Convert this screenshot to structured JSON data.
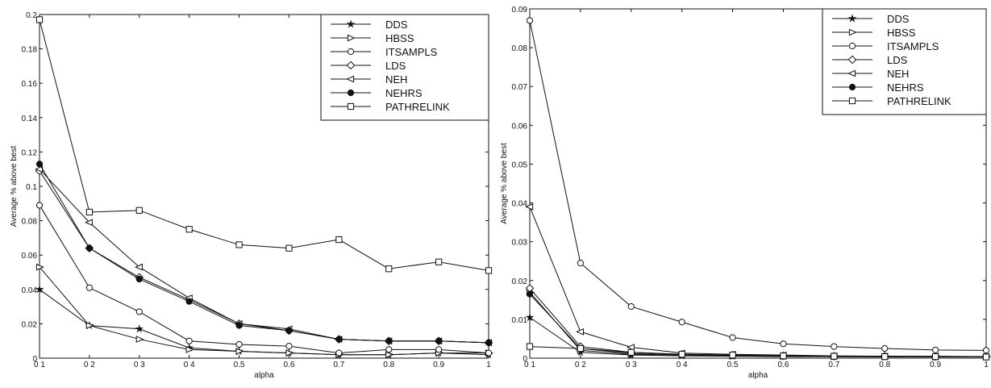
{
  "chart_data": [
    {
      "type": "line",
      "xlabel": "alpha",
      "ylabel": "Average % above best",
      "xlim": [
        0.1,
        1.0
      ],
      "ylim": [
        0,
        0.2
      ],
      "x": [
        0.1,
        0.2,
        0.3,
        0.4,
        0.5,
        0.6,
        0.7,
        0.8,
        0.9,
        1.0
      ],
      "x_tick_labels": [
        "0 1",
        "0 2",
        "0 3",
        "0 4",
        "0.5",
        "0.6",
        "0.7",
        "0.8",
        "0.9",
        "1"
      ],
      "y_tick_labels": [
        "0.2",
        "0.18",
        "0.16",
        "0.14",
        "0.12",
        "0.1",
        "0.08",
        "0.06",
        "0.04",
        "0.02",
        "0"
      ],
      "y_tick_values": [
        0.2,
        0.18,
        0.16,
        0.14,
        0.12,
        0.1,
        0.08,
        0.06,
        0.04,
        0.02,
        0
      ],
      "legend_position": "top-right",
      "grid": false,
      "series": [
        {
          "name": "DDS",
          "marker": "star",
          "values": [
            0.04,
            0.019,
            0.017,
            0.006,
            0.004,
            0.003,
            0.002,
            0.002,
            0.003,
            0.002
          ]
        },
        {
          "name": "HBSS",
          "marker": "triangle-right",
          "values": [
            0.053,
            0.019,
            0.011,
            0.005,
            0.004,
            0.003,
            0.002,
            0.002,
            0.003,
            0.003
          ]
        },
        {
          "name": "ITSAMPLS",
          "marker": "circle",
          "values": [
            0.089,
            0.041,
            0.027,
            0.01,
            0.008,
            0.007,
            0.003,
            0.005,
            0.005,
            0.003
          ]
        },
        {
          "name": "LDS",
          "marker": "diamond",
          "values": [
            0.109,
            0.064,
            0.047,
            0.034,
            0.02,
            0.016,
            0.011,
            0.01,
            0.01,
            0.009
          ]
        },
        {
          "name": "NEH",
          "marker": "triangle-left",
          "values": [
            0.11,
            0.079,
            0.053,
            0.035,
            0.02,
            0.017,
            0.011,
            0.01,
            0.01,
            0.009
          ]
        },
        {
          "name": "NEHRS",
          "marker": "filled-circle",
          "values": [
            0.113,
            0.064,
            0.046,
            0.033,
            0.019,
            0.016,
            0.011,
            0.01,
            0.01,
            0.009
          ]
        },
        {
          "name": "PATHRELINK",
          "marker": "square",
          "values": [
            0.197,
            0.085,
            0.086,
            0.075,
            0.066,
            0.064,
            0.069,
            0.052,
            0.056,
            0.051
          ]
        }
      ]
    },
    {
      "type": "line",
      "xlabel": "alpha",
      "ylabel": "Average % above best",
      "xlim": [
        0.1,
        1.0
      ],
      "ylim": [
        0,
        0.09
      ],
      "x": [
        0.1,
        0.2,
        0.3,
        0.4,
        0.5,
        0.6,
        0.7,
        0.8,
        0.9,
        1.0
      ],
      "x_tick_labels": [
        "0 1",
        "0 2",
        "0 3",
        "0 4",
        "0.5",
        "0.6",
        "0.7",
        "0.8",
        "0.9",
        "1"
      ],
      "y_tick_labels": [
        "0.09",
        "0.08",
        "0.07",
        "0.06",
        "0.05",
        "0.04",
        "0.03",
        "0.02",
        "0.01",
        "0"
      ],
      "y_tick_values": [
        0.09,
        0.08,
        0.07,
        0.06,
        0.05,
        0.04,
        0.03,
        0.02,
        0.01,
        0
      ],
      "legend_position": "top-right",
      "grid": false,
      "series": [
        {
          "name": "DDS",
          "marker": "star",
          "values": [
            0.0105,
            0.0015,
            0.0008,
            0.0006,
            0.0005,
            0.0004,
            0.0004,
            0.0003,
            0.0003,
            0.0003
          ]
        },
        {
          "name": "HBSS",
          "marker": "triangle-right",
          "values": [
            0.017,
            0.002,
            0.001,
            0.0008,
            0.0006,
            0.0005,
            0.0004,
            0.0004,
            0.0003,
            0.0003
          ]
        },
        {
          "name": "ITSAMPLS",
          "marker": "circle",
          "values": [
            0.087,
            0.0245,
            0.0133,
            0.0093,
            0.0053,
            0.0037,
            0.003,
            0.0025,
            0.0021,
            0.002
          ]
        },
        {
          "name": "LDS",
          "marker": "diamond",
          "values": [
            0.018,
            0.003,
            0.0015,
            0.001,
            0.0008,
            0.0006,
            0.0005,
            0.0005,
            0.0004,
            0.0004
          ]
        },
        {
          "name": "NEH",
          "marker": "triangle-left",
          "values": [
            0.039,
            0.0068,
            0.0028,
            0.0013,
            0.001,
            0.0008,
            0.0006,
            0.0005,
            0.0005,
            0.0004
          ]
        },
        {
          "name": "NEHRS",
          "marker": "filled-circle",
          "values": [
            0.0165,
            0.0025,
            0.0012,
            0.0008,
            0.0006,
            0.0005,
            0.0004,
            0.0004,
            0.0003,
            0.0003
          ]
        },
        {
          "name": "PATHRELINK",
          "marker": "square",
          "values": [
            0.003,
            0.0025,
            0.0015,
            0.001,
            0.0008,
            0.0006,
            0.0005,
            0.0004,
            0.0004,
            0.0003
          ]
        }
      ]
    }
  ]
}
